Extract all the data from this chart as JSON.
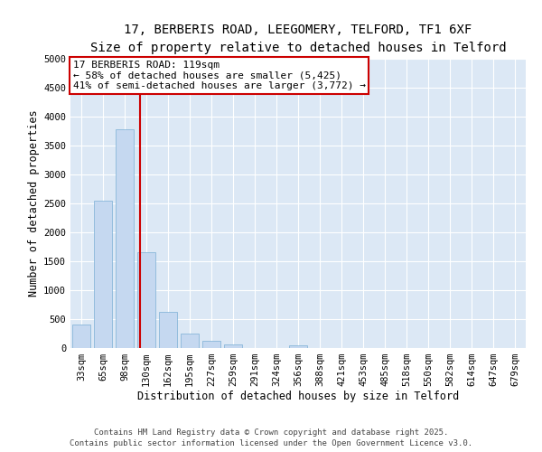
{
  "title_line1": "17, BERBERIS ROAD, LEEGOMERY, TELFORD, TF1 6XF",
  "title_line2": "Size of property relative to detached houses in Telford",
  "xlabel": "Distribution of detached houses by size in Telford",
  "ylabel": "Number of detached properties",
  "categories": [
    "33sqm",
    "65sqm",
    "98sqm",
    "130sqm",
    "162sqm",
    "195sqm",
    "227sqm",
    "259sqm",
    "291sqm",
    "324sqm",
    "356sqm",
    "388sqm",
    "421sqm",
    "453sqm",
    "485sqm",
    "518sqm",
    "550sqm",
    "582sqm",
    "614sqm",
    "647sqm",
    "679sqm"
  ],
  "values": [
    400,
    2550,
    3780,
    1650,
    620,
    250,
    120,
    70,
    0,
    0,
    50,
    0,
    0,
    0,
    0,
    0,
    0,
    0,
    0,
    0,
    0
  ],
  "bar_color": "#c5d8f0",
  "bar_edge_color": "#7bafd4",
  "fig_background_color": "#ffffff",
  "plot_background_color": "#dce8f5",
  "grid_color": "#ffffff",
  "vline_color": "#cc0000",
  "vline_x": 2.72,
  "annotation_text": "17 BERBERIS ROAD: 119sqm\n← 58% of detached houses are smaller (5,425)\n41% of semi-detached houses are larger (3,772) →",
  "annotation_box_facecolor": "#ffffff",
  "annotation_box_edgecolor": "#cc0000",
  "ylim": [
    0,
    5000
  ],
  "yticks": [
    0,
    500,
    1000,
    1500,
    2000,
    2500,
    3000,
    3500,
    4000,
    4500,
    5000
  ],
  "footer_line1": "Contains HM Land Registry data © Crown copyright and database right 2025.",
  "footer_line2": "Contains public sector information licensed under the Open Government Licence v3.0.",
  "title1_fontsize": 10,
  "title2_fontsize": 9,
  "axis_label_fontsize": 8.5,
  "tick_fontsize": 7.5,
  "annotation_fontsize": 8,
  "footer_fontsize": 6.5
}
